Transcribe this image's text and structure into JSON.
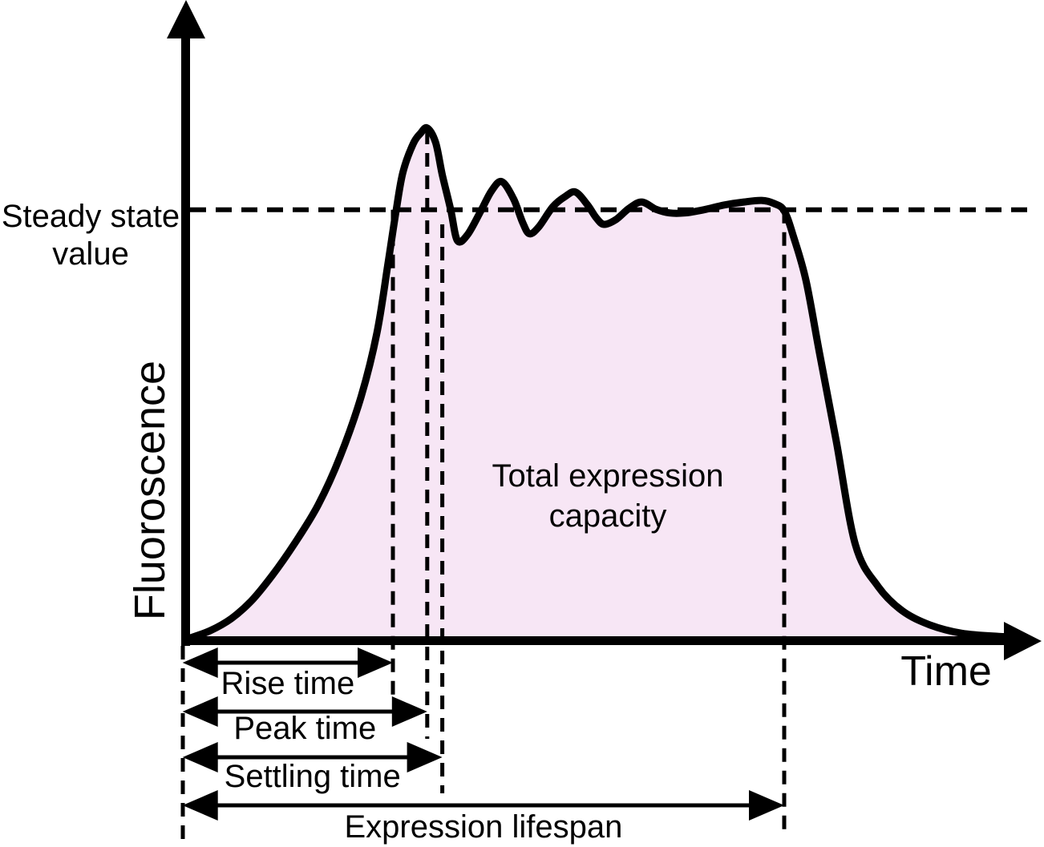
{
  "figure": {
    "background": "#ffffff",
    "ink": "#000000",
    "fill_color": "#f7e6f5"
  },
  "labels": {
    "y_axis": "Fluoroscence",
    "x_axis": "Time",
    "steady_state_line1": "Steady state",
    "steady_state_line2": "value",
    "area_line1": "Total expression",
    "area_line2": "capacity"
  },
  "chart_data": {
    "type": "area",
    "title": "",
    "xlabel": "Time",
    "ylabel": "Fluoroscence",
    "x_range": [
      0,
      100
    ],
    "y_range": [
      0,
      100
    ],
    "axis_units": "arbitrary (schematic, unlabeled axes)",
    "grid": false,
    "steady_state_value": 82.8,
    "peak_value": 98.5,
    "curve": [
      [
        0.2,
        0.6
      ],
      [
        2.6,
        2.0
      ],
      [
        5.1,
        4.3
      ],
      [
        7.5,
        7.7
      ],
      [
        10.0,
        12.6
      ],
      [
        12.7,
        18.8
      ],
      [
        15.5,
        26.2
      ],
      [
        18.1,
        35.4
      ],
      [
        20.6,
        46.9
      ],
      [
        22.5,
        59.2
      ],
      [
        23.8,
        72.3
      ],
      [
        24.8,
        82.8
      ],
      [
        25.6,
        90.0
      ],
      [
        26.8,
        95.4
      ],
      [
        27.7,
        97.5
      ],
      [
        28.5,
        98.5
      ],
      [
        29.5,
        95.7
      ],
      [
        30.3,
        89.5
      ],
      [
        31.3,
        82.8
      ],
      [
        32.1,
        76.9
      ],
      [
        33.3,
        78.0
      ],
      [
        34.9,
        82.6
      ],
      [
        36.2,
        86.5
      ],
      [
        37.4,
        88.2
      ],
      [
        38.8,
        84.9
      ],
      [
        39.9,
        80.3
      ],
      [
        40.7,
        78.2
      ],
      [
        41.8,
        79.5
      ],
      [
        43.5,
        83.4
      ],
      [
        45.0,
        85.4
      ],
      [
        46.2,
        86.2
      ],
      [
        47.6,
        83.8
      ],
      [
        48.7,
        81.2
      ],
      [
        49.6,
        80.0
      ],
      [
        51.0,
        80.9
      ],
      [
        52.6,
        83.1
      ],
      [
        54.1,
        84.3
      ],
      [
        55.8,
        82.9
      ],
      [
        57.4,
        82.2
      ],
      [
        59.3,
        82.2
      ],
      [
        61.5,
        82.8
      ],
      [
        63.9,
        83.7
      ],
      [
        66.3,
        84.3
      ],
      [
        68.4,
        84.6
      ],
      [
        69.9,
        84.0
      ],
      [
        71.1,
        82.6
      ],
      [
        72.2,
        77.7
      ],
      [
        73.7,
        69.2
      ],
      [
        75.3,
        55.4
      ],
      [
        77.3,
        38.5
      ],
      [
        79.6,
        18.5
      ],
      [
        82.3,
        10.5
      ],
      [
        85.2,
        5.8
      ],
      [
        88.5,
        3.1
      ],
      [
        92.3,
        1.5
      ],
      [
        96.7,
        0.9
      ],
      [
        99.5,
        0.8
      ]
    ],
    "markers": [
      {
        "name": "rise-time",
        "t": 24.4,
        "top_f": 82.8
      },
      {
        "name": "peak-time",
        "t": 28.5,
        "top_f": 98.0
      },
      {
        "name": "settling-time",
        "t": 30.3,
        "top_f": 80.0
      },
      {
        "name": "lifespan-end",
        "t": 71.1,
        "top_f": 82.8
      }
    ],
    "annotations": [
      {
        "name": "rise-time",
        "label": "Rise time",
        "from_t": -0.7,
        "to_t": 24.4
      },
      {
        "name": "peak-time",
        "label": "Peak time",
        "from_t": -0.7,
        "to_t": 28.5
      },
      {
        "name": "settling-time",
        "label": "Settling time",
        "from_t": -0.7,
        "to_t": 30.3
      },
      {
        "name": "expression-lifespan",
        "label": "Expression lifespan",
        "from_t": -0.7,
        "to_t": 71.1
      }
    ]
  }
}
